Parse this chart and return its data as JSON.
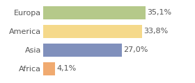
{
  "categories": [
    "Africa",
    "Asia",
    "America",
    "Europa"
  ],
  "values": [
    4.1,
    27.0,
    33.8,
    35.1
  ],
  "labels": [
    "4,1%",
    "27,0%",
    "33,8%",
    "35,1%"
  ],
  "bar_colors": [
    "#f0aa70",
    "#8090bc",
    "#f5d98b",
    "#b5c98a"
  ],
  "background_color": "#ffffff",
  "xlim": [
    0,
    44
  ],
  "bar_height": 0.72,
  "label_fontsize": 8,
  "tick_fontsize": 8,
  "grid_color": "#e0e0e0"
}
